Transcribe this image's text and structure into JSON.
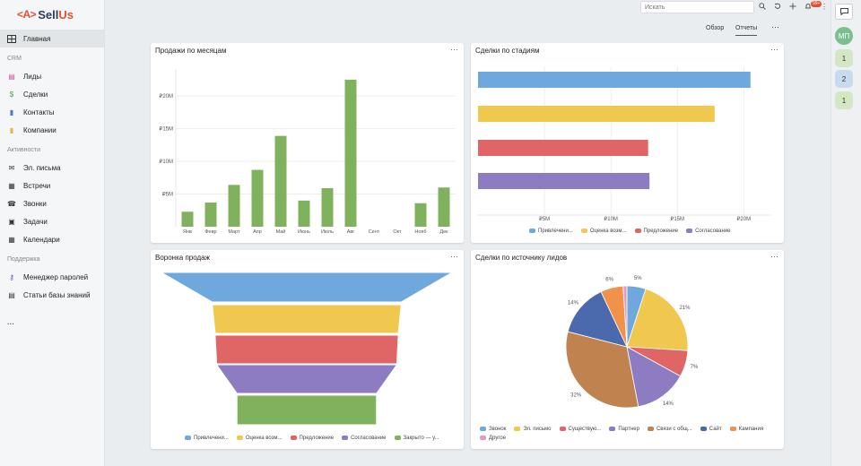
{
  "app": {
    "logo_mark": "<A>",
    "logo_sell": "Sell",
    "logo_us": "Us"
  },
  "sidebar": {
    "main": {
      "label": "Главная"
    },
    "groups": [
      {
        "label": "CRM",
        "items": [
          {
            "label": "Лиды",
            "icon": "lead-icon",
            "color": "#c0569a"
          },
          {
            "label": "Сделки",
            "icon": "dollar-icon",
            "color": "#3aa55b"
          },
          {
            "label": "Контакты",
            "icon": "contact-icon",
            "color": "#3b7fd4"
          },
          {
            "label": "Компании",
            "icon": "company-icon",
            "color": "#e8b53a"
          }
        ]
      },
      {
        "label": "Активности",
        "items": [
          {
            "label": "Эл. письма",
            "icon": "mail-icon",
            "color": "#333333"
          },
          {
            "label": "Встречи",
            "icon": "meeting-icon",
            "color": "#333333"
          },
          {
            "label": "Звонки",
            "icon": "phone-icon",
            "color": "#333333"
          },
          {
            "label": "Задачи",
            "icon": "task-icon",
            "color": "#333333"
          },
          {
            "label": "Календари",
            "icon": "calendar-icon",
            "color": "#333333"
          }
        ]
      },
      {
        "label": "Поддержка",
        "items": [
          {
            "label": "Менеджер паролей",
            "icon": "key-icon",
            "color": "#6a4fc2"
          },
          {
            "label": "Статьи базы знаний",
            "icon": "article-icon",
            "color": "#333333"
          }
        ]
      }
    ],
    "more": "···"
  },
  "topbar": {
    "search_placeholder": "Искать",
    "notif_count": "99+"
  },
  "tabs": [
    {
      "label": "Обзор"
    },
    {
      "label": "Отчеты",
      "active": true
    }
  ],
  "more": "···",
  "right": {
    "avatar": "МП",
    "items": [
      "1",
      "2",
      "1"
    ]
  },
  "cards": {
    "sales": {
      "title": "Продажи по месяцам"
    },
    "stages": {
      "title": "Сделки по стадиям"
    },
    "funnel": {
      "title": "Воронка продаж"
    },
    "sources": {
      "title": "Сделки по источнику лидов"
    }
  },
  "chart_data": [
    {
      "type": "bar",
      "title": "Продажи по месяцам",
      "categories": [
        "Янв",
        "Февр",
        "Март",
        "Апр",
        "Май",
        "Июнь",
        "Июль",
        "Авг",
        "Сент",
        "Окт",
        "Нояб",
        "Дек"
      ],
      "values": [
        2.3,
        3.7,
        6.4,
        8.7,
        13.9,
        4.0,
        5.9,
        22.5,
        0,
        0,
        3.6,
        6.0
      ],
      "ylim": [
        0,
        24
      ],
      "yticks": [
        5,
        10,
        15,
        20
      ],
      "yticklabels": [
        "₽5M",
        "₽10M",
        "₽15M",
        "₽20M"
      ],
      "color": "#80b25d"
    },
    {
      "type": "bar",
      "orientation": "horizontal",
      "title": "Сделки по стадиям",
      "categories": [
        "Привлечени...",
        "Оценка возм...",
        "Предложение",
        "Согласование"
      ],
      "values": [
        20.5,
        17.8,
        12.8,
        12.9
      ],
      "colors": [
        "#6fa8dc",
        "#f1c84f",
        "#e06666",
        "#8e7cc3"
      ],
      "xlim": [
        0,
        22
      ],
      "xticks": [
        5,
        10,
        15,
        20
      ],
      "xticklabels": [
        "₽5M",
        "₽10M",
        "₽15M",
        "₽20M"
      ]
    },
    {
      "type": "funnel",
      "title": "Воронка продаж",
      "categories": [
        "Привлечени...",
        "Оценка возм...",
        "Предложение",
        "Согласование",
        "Закрыто — у..."
      ],
      "values": [
        100,
        65,
        63,
        62,
        48
      ],
      "colors": [
        "#6fa8dc",
        "#f1c84f",
        "#e06666",
        "#8e7cc3",
        "#80b25d"
      ]
    },
    {
      "type": "pie",
      "title": "Сделки по источнику лидов",
      "categories": [
        "Звонок",
        "Эл. письмо",
        "Существую...",
        "Партнер",
        "Связи с общ...",
        "Сайт",
        "Кампания",
        "Другое"
      ],
      "values": [
        5,
        21,
        7,
        14,
        32,
        14,
        6,
        1
      ],
      "labels": [
        "5%",
        "21%",
        "7%",
        "14%",
        "32%",
        "14%",
        "6%",
        ""
      ],
      "colors": [
        "#6fa8dc",
        "#f1c84f",
        "#e06666",
        "#8e7cc3",
        "#c0834f",
        "#4a6aad",
        "#f0924a",
        "#e39bc4"
      ]
    }
  ]
}
